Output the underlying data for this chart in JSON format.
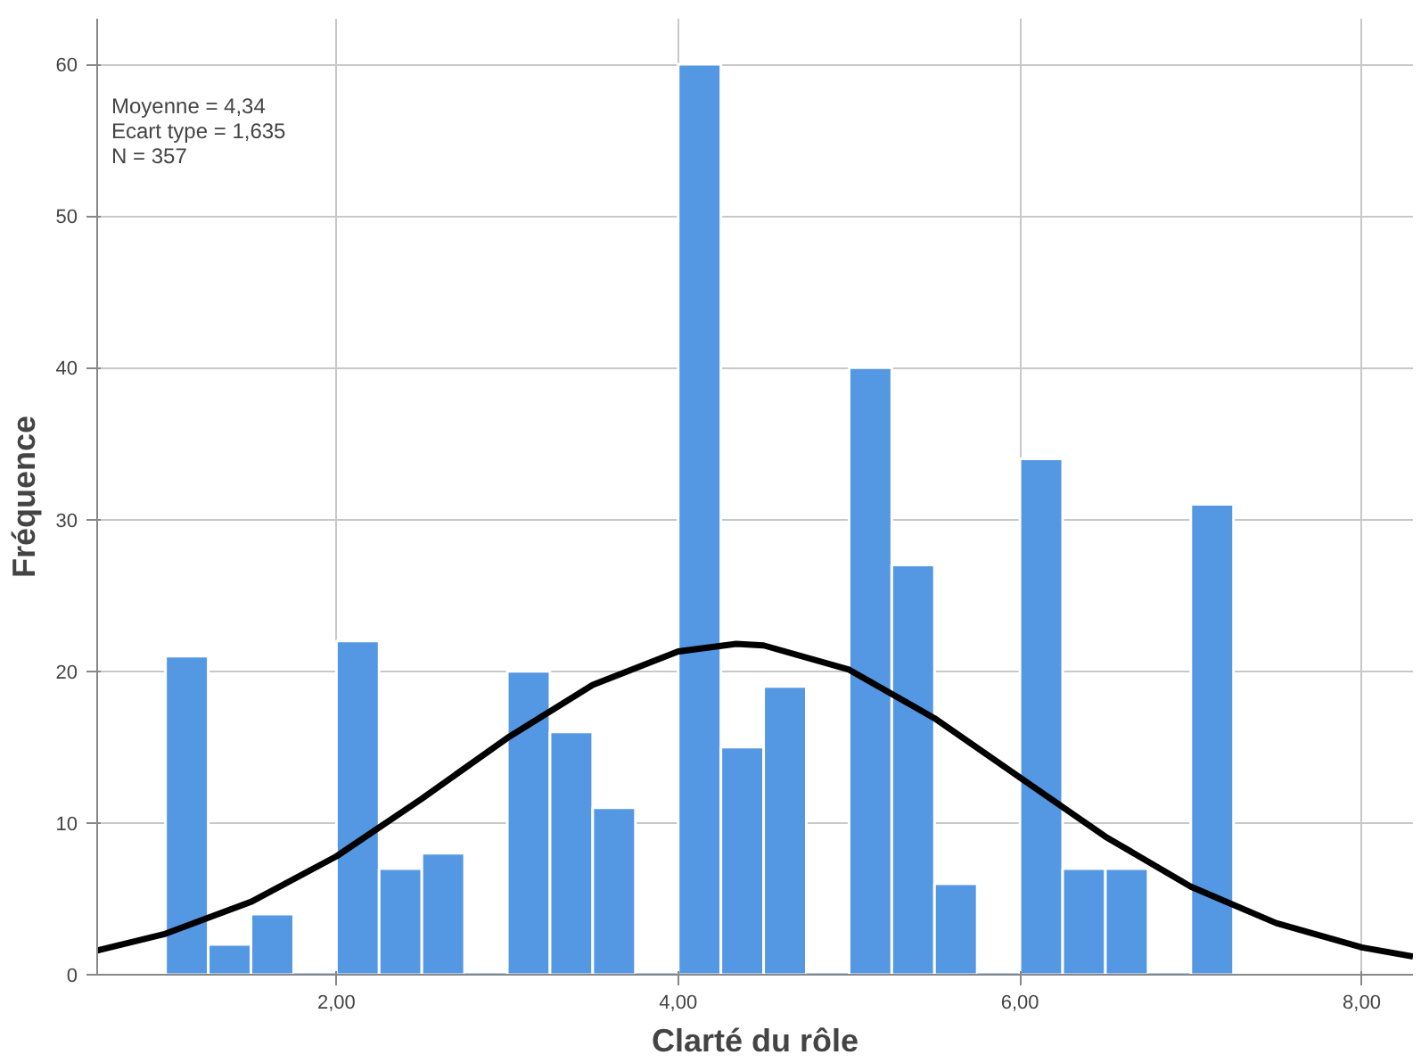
{
  "chart_data": {
    "type": "histogram",
    "xlabel": "Clarté du rôle",
    "ylabel": "Fréquence",
    "annotations": [
      "Moyenne = 4,34",
      "Ecart type = 1,635",
      "N = 357"
    ],
    "series": [
      {
        "color": "#5497e3",
        "bins": [
          1.0,
          1.25,
          1.5,
          1.75,
          2.0,
          2.25,
          2.5,
          2.75,
          3.0,
          3.25,
          3.5,
          3.75,
          4.0,
          4.25,
          4.5,
          4.75,
          5.0,
          5.25,
          5.5,
          5.75,
          6.0,
          6.25,
          6.5,
          6.75,
          7.0,
          7.25
        ],
        "values": [
          21,
          2,
          4,
          0,
          22,
          7,
          8,
          0,
          20,
          16,
          11,
          0,
          60,
          15,
          19,
          0,
          40,
          27,
          6,
          0,
          34,
          7,
          7,
          0,
          31
        ]
      },
      {
        "type": "line",
        "color": "#000000",
        "x": [
          0.6,
          1.0,
          1.5,
          2.0,
          2.5,
          3.0,
          3.5,
          4.0,
          4.34,
          4.5,
          5.0,
          5.5,
          6.0,
          6.5,
          7.0,
          7.5,
          8.0,
          8.3
        ],
        "values": [
          1.6,
          2.7,
          4.8,
          7.8,
          11.6,
          15.6,
          19.1,
          21.3,
          21.8,
          21.7,
          20.1,
          16.9,
          13.0,
          9.1,
          5.8,
          3.4,
          1.8,
          1.2
        ]
      }
    ],
    "xlim": [
      0.6,
      8.3
    ],
    "ylim": [
      0,
      63
    ],
    "xticks": [
      {
        "value": 2,
        "label": "2,00"
      },
      {
        "value": 4,
        "label": "4,00"
      },
      {
        "value": 6,
        "label": "6,00"
      },
      {
        "value": 8,
        "label": "8,00"
      }
    ],
    "yticks": [
      0,
      10,
      20,
      30,
      40,
      50,
      60
    ],
    "grid": true
  }
}
